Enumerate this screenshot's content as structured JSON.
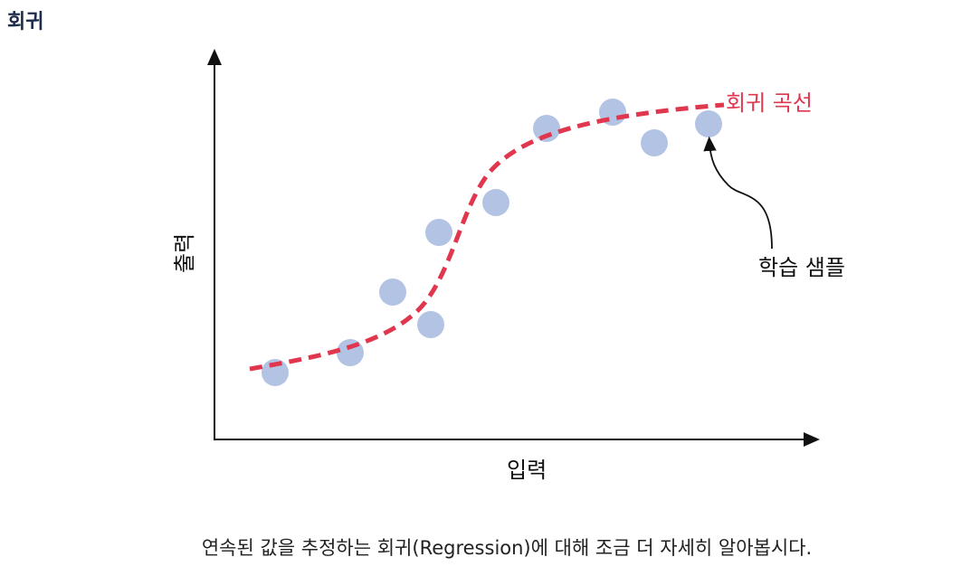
{
  "title": "회귀",
  "diagram": {
    "y_axis_label": "출력",
    "x_axis_label": "입력",
    "curve_label": "회귀 곡선",
    "sample_label": "학습 샘플",
    "colors": {
      "curve": "#e0374f",
      "points": "#b3c3e3",
      "axes": "#111111"
    }
  },
  "caption": "연속된 값을 추정하는 회귀(Regression)에 대해 조금 더 자세히 알아봅시다."
}
